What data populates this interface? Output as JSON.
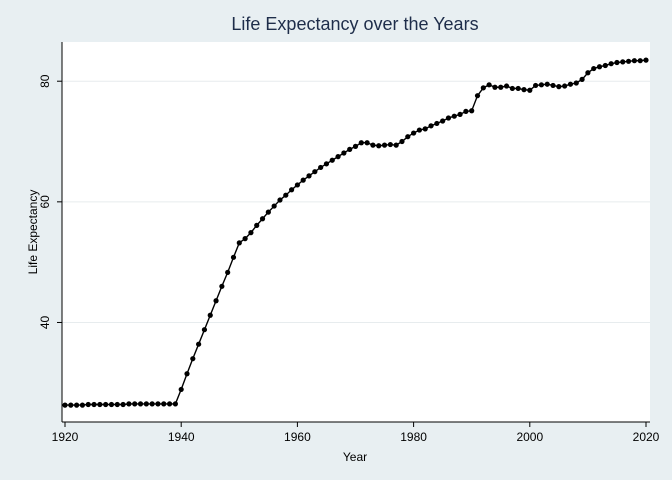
{
  "chart_data": {
    "type": "line",
    "title": "Life Expectancy over the Years",
    "xlabel": "Year",
    "ylabel": "Life Expectancy",
    "xlim": [
      1920,
      2020
    ],
    "ylim": [
      23.5,
      86.5
    ],
    "xticks": [
      1920,
      1940,
      1960,
      1980,
      2000,
      2020
    ],
    "yticks": [
      40,
      60,
      80
    ],
    "grid": "horizontal",
    "legend": "none",
    "markers": true,
    "colors": {
      "background": "#e8eff2",
      "plot_background": "#ffffff",
      "line": "#000000",
      "grid": "#e7ecee",
      "title": "#1e2d4a"
    },
    "series": [
      {
        "x": [
          1920,
          1921,
          1922,
          1923,
          1924,
          1925,
          1926,
          1927,
          1928,
          1929,
          1930,
          1931,
          1932,
          1933,
          1934,
          1935,
          1936,
          1937,
          1938,
          1939,
          1940,
          1941,
          1942,
          1943,
          1944,
          1945,
          1946,
          1947,
          1948,
          1949,
          1950,
          1951,
          1952,
          1953,
          1954,
          1955,
          1956,
          1957,
          1958,
          1959,
          1960,
          1961,
          1962,
          1963,
          1964,
          1965,
          1966,
          1967,
          1968,
          1969,
          1970,
          1971,
          1972,
          1973,
          1974,
          1975,
          1976,
          1977,
          1978,
          1979,
          1980,
          1981,
          1982,
          1983,
          1984,
          1985,
          1986,
          1987,
          1988,
          1989,
          1990,
          1991,
          1992,
          1993,
          1994,
          1995,
          1996,
          1997,
          1998,
          1999,
          2000,
          2001,
          2002,
          2003,
          2004,
          2005,
          2006,
          2007,
          2008,
          2009,
          2010,
          2011,
          2012,
          2013,
          2014,
          2015,
          2016,
          2017,
          2018,
          2019,
          2020
        ],
        "values": [
          26.3,
          26.3,
          26.3,
          26.3,
          26.4,
          26.4,
          26.4,
          26.4,
          26.4,
          26.4,
          26.4,
          26.5,
          26.5,
          26.5,
          26.5,
          26.5,
          26.5,
          26.5,
          26.5,
          26.5,
          28.9,
          31.5,
          34.0,
          36.4,
          38.8,
          41.2,
          43.6,
          46.0,
          48.3,
          50.8,
          53.2,
          53.9,
          54.9,
          56.1,
          57.2,
          58.3,
          59.3,
          60.3,
          61.1,
          62.0,
          62.8,
          63.6,
          64.3,
          65.0,
          65.7,
          66.3,
          66.9,
          67.5,
          68.1,
          68.7,
          69.2,
          69.8,
          69.8,
          69.4,
          69.3,
          69.4,
          69.5,
          69.4,
          70.0,
          70.8,
          71.4,
          71.9,
          72.1,
          72.6,
          73.0,
          73.4,
          73.9,
          74.2,
          74.5,
          75.0,
          75.1,
          77.6,
          78.9,
          79.4,
          79.0,
          79.0,
          79.2,
          78.8,
          78.8,
          78.6,
          78.5,
          79.3,
          79.4,
          79.5,
          79.3,
          79.1,
          79.2,
          79.5,
          79.7,
          80.3,
          81.4,
          82.1,
          82.4,
          82.6,
          82.9,
          83.1,
          83.2,
          83.3,
          83.4,
          83.4,
          83.5
        ]
      }
    ]
  }
}
